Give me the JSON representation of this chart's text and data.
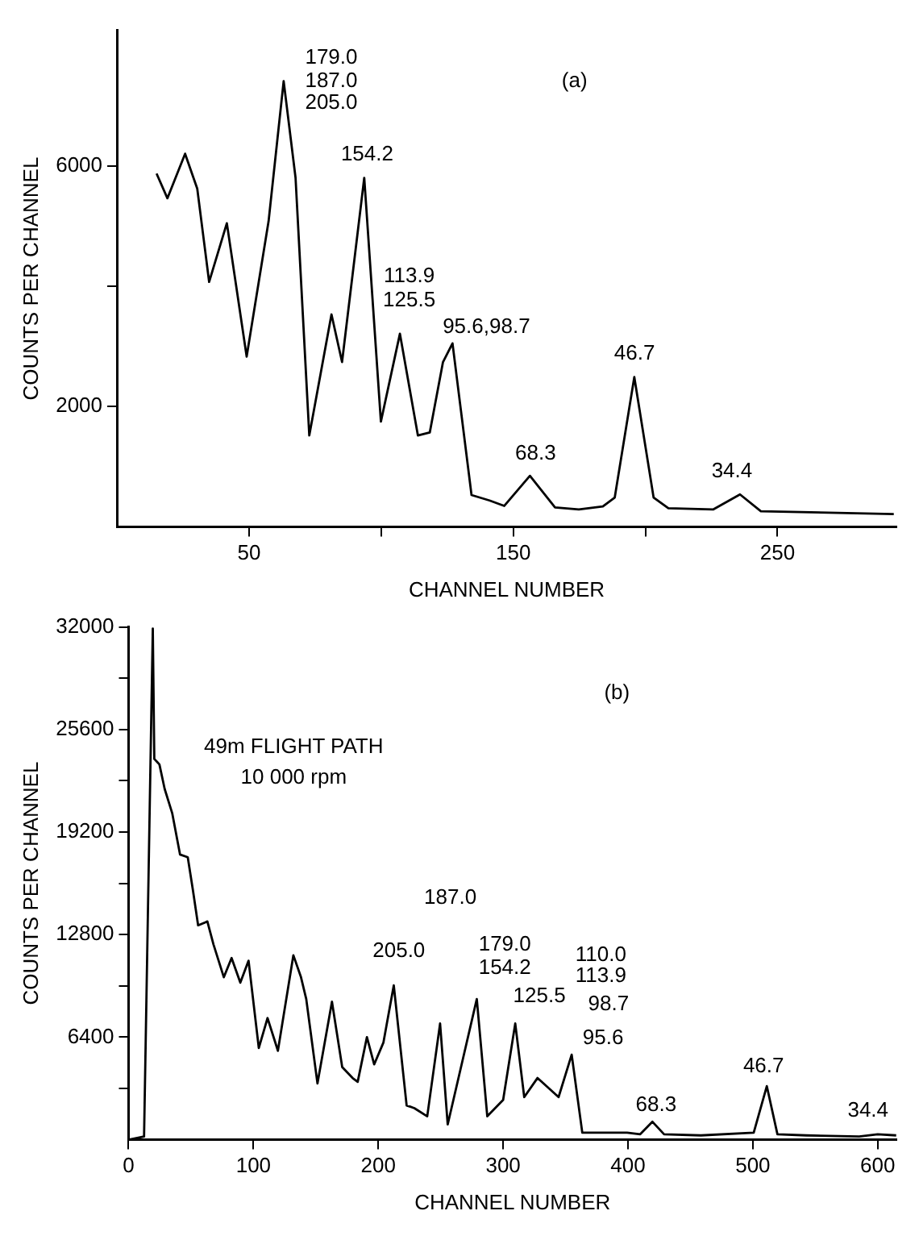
{
  "chart_data": [
    {
      "type": "line",
      "xlabel": "CHANNEL NUMBER",
      "ylabel": "COUNTS PER CHANNEL",
      "xlim": [
        0,
        295
      ],
      "ylim": [
        0,
        8250
      ],
      "xticks": [
        50,
        {
          "value": 100,
          "label": null
        },
        150,
        {
          "value": 200,
          "label": null
        },
        250
      ],
      "yticks": [
        2000,
        {
          "value": 4000,
          "label": null
        },
        6000
      ],
      "grid": false,
      "legend": false,
      "marker": "none",
      "line_style": "solid",
      "series": [
        {
          "color": "#000000",
          "x": [
            15,
            19.1,
            25.8,
            30.4,
            34.9,
            41.6,
            49.1,
            57.4,
            63.1,
            67.6,
            72.8,
            81.2,
            85.2,
            93.6,
            99.9,
            107.1,
            113.9,
            118.4,
            123.4,
            127,
            134.2,
            141,
            146.6,
            156.3,
            165.8,
            174.8,
            183.9,
            188.4,
            195.8,
            203.1,
            208.7,
            225.6,
            235.8,
            243.7,
            294
          ],
          "values": [
            5870,
            5460,
            6200,
            5620,
            4070,
            5045,
            2830,
            5080,
            7405,
            5800,
            1520,
            3530,
            2740,
            5800,
            1750,
            3210,
            1520,
            1570,
            2740,
            3050,
            530,
            440,
            350,
            850,
            325,
            290,
            340,
            490,
            2490,
            490,
            310,
            290,
            540,
            260,
            215
          ]
        }
      ],
      "annotations": [
        "179.0",
        "187.0",
        "205.0",
        "154.2",
        "113.9",
        "125.5",
        "95.6,98.7",
        "68.3",
        "46.7",
        "34.4",
        "(a)"
      ]
    },
    {
      "type": "line",
      "xlabel": "CHANNEL NUMBER",
      "ylabel": "COUNTS PER CHANNEL",
      "xlim": [
        0,
        615
      ],
      "ylim": [
        0,
        32000
      ],
      "xticks": [
        0,
        100,
        200,
        300,
        400,
        500,
        600
      ],
      "yticks": [
        {
          "value": 3200,
          "label": null
        },
        6400,
        {
          "value": 9600,
          "label": null
        },
        12800,
        {
          "value": 16000,
          "label": null
        },
        19200,
        {
          "value": 22400,
          "label": null
        },
        25600,
        {
          "value": 28800,
          "label": null
        },
        32000
      ],
      "grid": false,
      "legend": false,
      "marker": "none",
      "line_style": "solid",
      "series": [
        {
          "color": "#000000",
          "x": [
            0,
            12.4,
            19.4,
            20.6,
            22.7,
            24.7,
            28.9,
            35,
            41.2,
            47.4,
            51.5,
            55.7,
            63.1,
            68,
            76.3,
            82.5,
            89.5,
            96.1,
            104.3,
            111.3,
            119.6,
            132,
            138.1,
            142.3,
            151.3,
            162.9,
            171.1,
            179.4,
            183.5,
            190.9,
            196.7,
            204.1,
            212.4,
            222.7,
            228.9,
            239.2,
            249.5,
            255.6,
            278.9,
            287.3,
            300,
            309.7,
            316.9,
            327.5,
            344.4,
            354.9,
            363.4,
            373.9,
            399.3,
            409.8,
            419.6,
            428.9,
            458.4,
            500.7,
            511.2,
            519.7,
            542.9,
            585.2,
            600,
            614.8
          ],
          "values": [
            0,
            200,
            31900,
            23760,
            23590,
            23420,
            21890,
            20360,
            17800,
            17630,
            15590,
            13380,
            13620,
            12190,
            10140,
            11340,
            9800,
            11170,
            5720,
            7590,
            5550,
            11510,
            10140,
            8780,
            3510,
            8610,
            4530,
            3850,
            3610,
            6400,
            4700,
            6060,
            9630,
            2140,
            1970,
            1460,
            7250,
            950,
            8780,
            1460,
            2480,
            7250,
            2660,
            3850,
            2660,
            5310,
            440,
            440,
            440,
            340,
            1120,
            340,
            270,
            440,
            3340,
            340,
            270,
            200,
            340,
            270
          ]
        }
      ],
      "annotations": [
        "205.0",
        "187.0",
        "179.0",
        "154.2",
        "125.5",
        "110.0",
        "113.9",
        "98.7",
        "95.6",
        "68.3",
        "46.7",
        "34.4",
        "(b)",
        "49m FLIGHT PATH",
        "10 000 rpm"
      ]
    }
  ]
}
